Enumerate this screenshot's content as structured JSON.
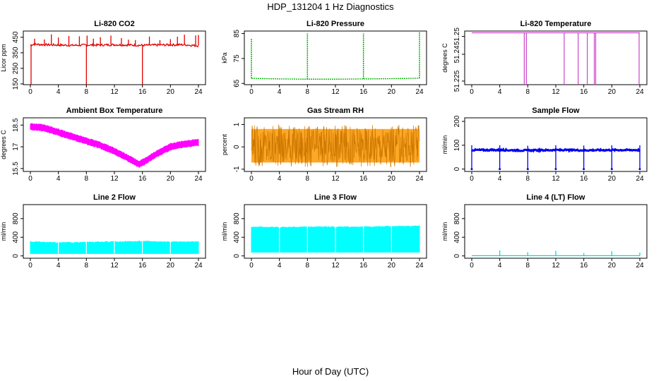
{
  "main_title": "HDP_131204  1 Hz Diagnostics",
  "xlabel": "Hour of Day (UTC)",
  "chart_data": [
    {
      "id": "co2",
      "type": "line",
      "title": "Li-820 CO2",
      "ylabel": "Licor ppm",
      "color": "#e00000",
      "style": "spiky",
      "x_ticks": [
        0,
        4,
        8,
        12,
        16,
        20,
        24
      ],
      "xlim": [
        0,
        24
      ],
      "y_ticks": [
        150,
        250,
        350,
        450
      ],
      "ylim": [
        145,
        490
      ],
      "series": [
        {
          "name": "CO2",
          "x": [
            0,
            0.5,
            2,
            4,
            6,
            8,
            10,
            12,
            14,
            16,
            18,
            20,
            22,
            24
          ],
          "values": [
            400,
            405,
            402,
            400,
            398,
            400,
            400,
            402,
            400,
            398,
            400,
            401,
            402,
            395
          ]
        }
      ],
      "spikes_up": [
        0.6,
        2,
        3,
        4,
        5.5,
        7,
        8.1,
        9,
        10,
        11.5,
        13,
        14,
        15,
        17,
        18.5,
        20,
        21,
        22,
        23.6,
        24
      ],
      "spikes_down": [
        0.1,
        8,
        16
      ]
    },
    {
      "id": "pressure",
      "type": "line",
      "title": "Li-820 Pressure",
      "ylabel": "kPa",
      "color": "#00b000",
      "style": "dotted-spikes",
      "x_ticks": [
        0,
        4,
        8,
        12,
        16,
        20,
        24
      ],
      "xlim": [
        0,
        24
      ],
      "y_ticks": [
        65,
        75,
        85
      ],
      "ylim": [
        64.5,
        86
      ],
      "series": [
        {
          "name": "Pressure",
          "x": [
            0,
            4,
            8,
            12,
            16,
            20,
            24
          ],
          "values": [
            67.0,
            66.8,
            66.7,
            66.7,
            66.8,
            66.9,
            67.1
          ]
        }
      ],
      "spikes_up": [
        0,
        8,
        16,
        24
      ],
      "spike_tops": [
        83,
        85,
        85,
        85.5
      ]
    },
    {
      "id": "licor-temp",
      "type": "line",
      "title": "Li-820 Temperature",
      "ylabel": "degrees C",
      "color": "#cc44cc",
      "style": "drops",
      "x_ticks": [
        0,
        4,
        8,
        12,
        16,
        20,
        24
      ],
      "xlim": [
        0,
        24
      ],
      "y_ticks": [
        51.225,
        51.24,
        51.25
      ],
      "ylim": [
        51.223,
        51.253
      ],
      "series": [
        {
          "name": "Temperature",
          "x": [
            0,
            24
          ],
          "values": [
            51.252,
            51.252
          ]
        }
      ],
      "drops": [
        7.5,
        7.8,
        13.2,
        15.2,
        16.5,
        17.5,
        17.7,
        23.9
      ],
      "drop_to": 51.223
    },
    {
      "id": "box-temp",
      "type": "area",
      "title": "Ambient Box Temperature",
      "ylabel": "degrees C",
      "color": "#ff00ff",
      "style": "band",
      "x_ticks": [
        0,
        4,
        8,
        12,
        16,
        20,
        24
      ],
      "xlim": [
        0,
        24
      ],
      "y_ticks": [
        15.5,
        17.0,
        18.5
      ],
      "ylim": [
        15.3,
        19.0
      ],
      "series": [
        {
          "name": "Temperature",
          "x": [
            0,
            2,
            4,
            6,
            8,
            10,
            12,
            14,
            15.5,
            16,
            18,
            20,
            22,
            24
          ],
          "values": [
            18.4,
            18.3,
            18.0,
            17.7,
            17.4,
            17.1,
            16.7,
            16.2,
            15.8,
            15.9,
            16.5,
            17.0,
            17.2,
            17.3
          ]
        }
      ],
      "band_half": 0.2
    },
    {
      "id": "rh",
      "type": "area",
      "title": "Gas Stream RH",
      "ylabel": "percent",
      "color": "#ff9900",
      "color2": "#cc7700",
      "style": "noise",
      "x_ticks": [
        0,
        4,
        8,
        12,
        16,
        20,
        24
      ],
      "xlim": [
        0,
        24
      ],
      "y_ticks": [
        -1.0,
        0.0,
        1.0
      ],
      "ylim": [
        -1.1,
        1.3
      ],
      "series": [
        {
          "name": "RH",
          "x": [
            0,
            24
          ],
          "values": [
            0.05,
            0.05
          ]
        }
      ],
      "band_half": 0.75
    },
    {
      "id": "sample-flow",
      "type": "line",
      "title": "Sample Flow",
      "ylabel": "ml/min",
      "color": "#0000ee",
      "style": "flow-dips",
      "x_ticks": [
        0,
        4,
        8,
        12,
        16,
        20,
        24
      ],
      "xlim": [
        0,
        24
      ],
      "y_ticks": [
        0,
        100,
        200
      ],
      "ylim": [
        -10,
        215
      ],
      "series": [
        {
          "name": "Flow",
          "x": [
            0,
            4,
            8,
            12,
            16,
            20,
            24
          ],
          "values": [
            80,
            80,
            78,
            80,
            79,
            80,
            80
          ]
        }
      ],
      "dips": [
        0,
        4,
        8,
        12,
        16,
        20,
        24
      ],
      "dip_to": 0
    },
    {
      "id": "line2",
      "type": "area",
      "title": "Line 2 Flow",
      "ylabel": "ml/min",
      "color": "#00ffff",
      "style": "block",
      "x_ticks": [
        0,
        4,
        8,
        12,
        16,
        20,
        24
      ],
      "xlim": [
        0,
        24
      ],
      "y_ticks": [
        0,
        400,
        800
      ],
      "ylim": [
        -50,
        1100
      ],
      "series": [
        {
          "name": "Flow",
          "x": [
            0,
            4,
            8,
            12,
            16,
            20,
            24
          ],
          "values": [
            300,
            280,
            290,
            300,
            310,
            300,
            300
          ]
        }
      ],
      "band_low": 50,
      "gaps": [
        4,
        8,
        12,
        16,
        20
      ]
    },
    {
      "id": "line3",
      "type": "area",
      "title": "Line 3 Flow",
      "ylabel": "ml/min",
      "color": "#00ffff",
      "style": "block",
      "x_ticks": [
        0,
        4,
        8,
        12,
        16,
        20,
        24
      ],
      "xlim": [
        0,
        24
      ],
      "y_ticks": [
        0,
        400,
        800
      ],
      "ylim": [
        -50,
        1100
      ],
      "series": [
        {
          "name": "Flow",
          "x": [
            0,
            4,
            8,
            12,
            16,
            20,
            24
          ],
          "values": [
            620,
            610,
            620,
            620,
            620,
            630,
            640
          ]
        }
      ],
      "band_low": 80,
      "gaps": [
        4,
        8,
        12,
        16,
        20
      ]
    },
    {
      "id": "line4",
      "type": "line",
      "title": "Line 4 (LT) Flow",
      "ylabel": "ml/min",
      "color": "#00dddd",
      "style": "flat-spikes",
      "x_ticks": [
        0,
        4,
        8,
        12,
        16,
        20,
        24
      ],
      "xlim": [
        0,
        24
      ],
      "y_ticks": [
        0,
        400,
        800
      ],
      "ylim": [
        -50,
        1100
      ],
      "series": [
        {
          "name": "Flow",
          "x": [
            0,
            24
          ],
          "values": [
            5,
            5
          ]
        }
      ],
      "spikes_up": [
        4,
        8,
        12,
        16,
        20,
        24
      ],
      "spike_tops": [
        120,
        80,
        110,
        60,
        100,
        70
      ]
    }
  ]
}
